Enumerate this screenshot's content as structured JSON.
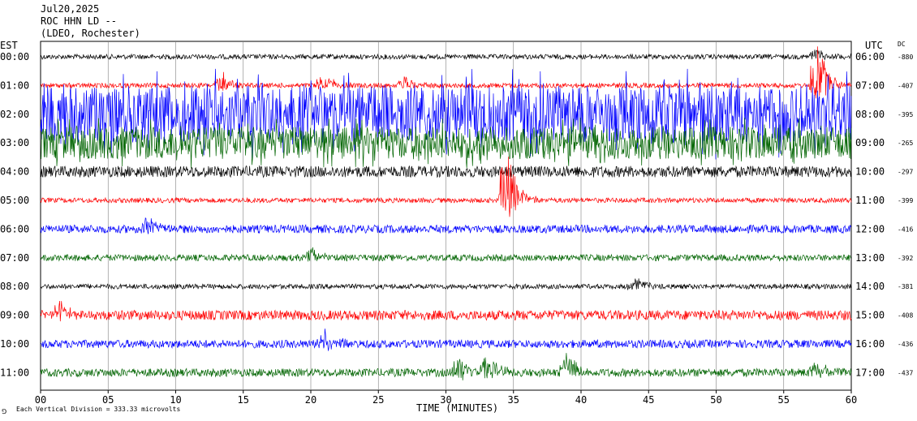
{
  "header": {
    "date": "Jul20,2025",
    "station": "ROC HHN LD --",
    "location": "(LDEO, Rochester)"
  },
  "left_axis_label": "EST",
  "right_axis_label": "UTC",
  "dc_label": "DC",
  "footer_note": "Each Vertical Division =  333.33 microvolts",
  "colors": {
    "black": "#000000",
    "red": "#ff0000",
    "blue": "#0000ff",
    "green": "#006400"
  },
  "chart_data": {
    "type": "line",
    "xlabel": "TIME (MINUTES)",
    "x_ticks": [
      "00",
      "05",
      "10",
      "15",
      "20",
      "25",
      "30",
      "35",
      "40",
      "45",
      "50",
      "55",
      "60"
    ],
    "xlim": [
      0,
      60
    ],
    "series": [
      {
        "est": "00:00",
        "utc": "06:00",
        "dc": "-880",
        "color": "black",
        "amplitude": 3,
        "events": [
          {
            "t": 57.5,
            "amp": 8
          }
        ]
      },
      {
        "est": "01:00",
        "utc": "07:00",
        "dc": "-407",
        "color": "red",
        "amplitude": 3,
        "events": [
          {
            "t": 13.5,
            "amp": 12
          },
          {
            "t": 21.0,
            "amp": 10
          },
          {
            "t": 27.0,
            "amp": 9
          },
          {
            "t": 57.5,
            "amp": 40
          }
        ]
      },
      {
        "est": "02:00",
        "utc": "08:00",
        "dc": "-395",
        "color": "blue",
        "amplitude": 35,
        "events": []
      },
      {
        "est": "03:00",
        "utc": "09:00",
        "dc": "-265",
        "color": "green",
        "amplitude": 20,
        "events": []
      },
      {
        "est": "04:00",
        "utc": "10:00",
        "dc": "-297",
        "color": "black",
        "amplitude": 7,
        "events": []
      },
      {
        "est": "05:00",
        "utc": "11:00",
        "dc": "-399",
        "color": "red",
        "amplitude": 3,
        "events": [
          {
            "t": 34.5,
            "amp": 50
          }
        ]
      },
      {
        "est": "06:00",
        "utc": "12:00",
        "dc": "-416",
        "color": "blue",
        "amplitude": 5,
        "events": [
          {
            "t": 8.0,
            "amp": 12
          }
        ]
      },
      {
        "est": "07:00",
        "utc": "13:00",
        "dc": "-392",
        "color": "green",
        "amplitude": 4,
        "events": [
          {
            "t": 20.0,
            "amp": 10
          }
        ]
      },
      {
        "est": "08:00",
        "utc": "14:00",
        "dc": "-381",
        "color": "black",
        "amplitude": 3,
        "events": [
          {
            "t": 44.0,
            "amp": 8
          }
        ]
      },
      {
        "est": "09:00",
        "utc": "15:00",
        "dc": "-408",
        "color": "red",
        "amplitude": 6,
        "events": [
          {
            "t": 1.5,
            "amp": 12
          }
        ]
      },
      {
        "est": "10:00",
        "utc": "16:00",
        "dc": "-436",
        "color": "blue",
        "amplitude": 5,
        "events": [
          {
            "t": 21.0,
            "amp": 14
          }
        ]
      },
      {
        "est": "11:00",
        "utc": "17:00",
        "dc": "-437",
        "color": "green",
        "amplitude": 5,
        "events": [
          {
            "t": 31.0,
            "amp": 18
          },
          {
            "t": 33.0,
            "amp": 18
          },
          {
            "t": 39.0,
            "amp": 18
          },
          {
            "t": 57.5,
            "amp": 10
          }
        ]
      }
    ]
  }
}
